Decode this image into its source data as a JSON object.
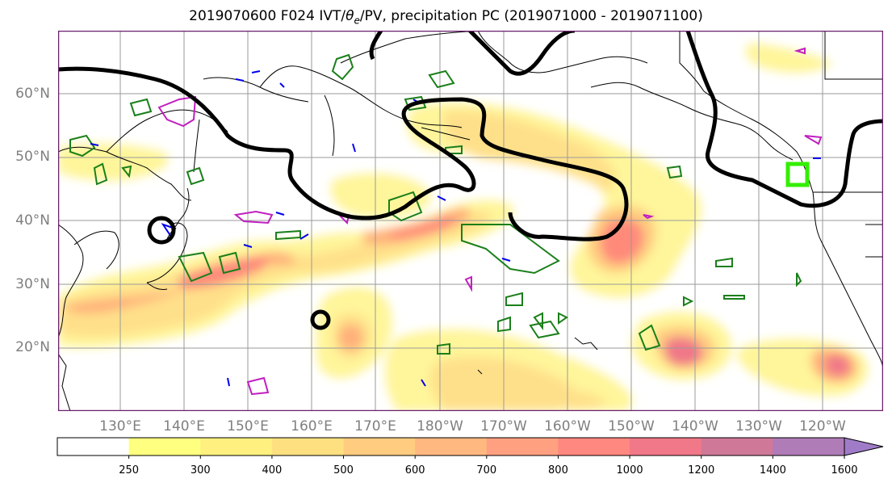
{
  "title": {
    "prefix": "2019070600 F024 IVT/",
    "theta_symbol": "θ",
    "theta_sub": "e",
    "suffix": "/PV, precipitation PC (2019071000 - 2019071100)"
  },
  "map": {
    "lat_labels": [
      "60°N",
      "50°N",
      "40°N",
      "30°N",
      "20°N"
    ],
    "lon_labels": [
      "130°E",
      "140°E",
      "150°E",
      "160°E",
      "170°E",
      "180°W",
      "170°W",
      "160°W",
      "150°W",
      "140°W",
      "130°W",
      "120°W"
    ],
    "colors": {
      "frame": "#6a1f6a",
      "grid": "#9a9a9a",
      "coast": "#000000",
      "pv_contour": "#000000",
      "theta_contour": "#1a7f1a",
      "blue_contour": "#0000ee",
      "magenta_contour": "#c020c0",
      "target_box": "#33ee00"
    }
  },
  "colorbar": {
    "ticks": [
      "250",
      "300",
      "400",
      "500",
      "600",
      "700",
      "800",
      "1000",
      "1200",
      "1400",
      "1600"
    ],
    "colors": [
      "#ffffff",
      "#ffff80",
      "#fff080",
      "#ffe080",
      "#ffcc80",
      "#ffb880",
      "#ffa080",
      "#ff8880",
      "#f07888",
      "#d07898",
      "#b07cb8",
      "#a07cc8"
    ]
  }
}
